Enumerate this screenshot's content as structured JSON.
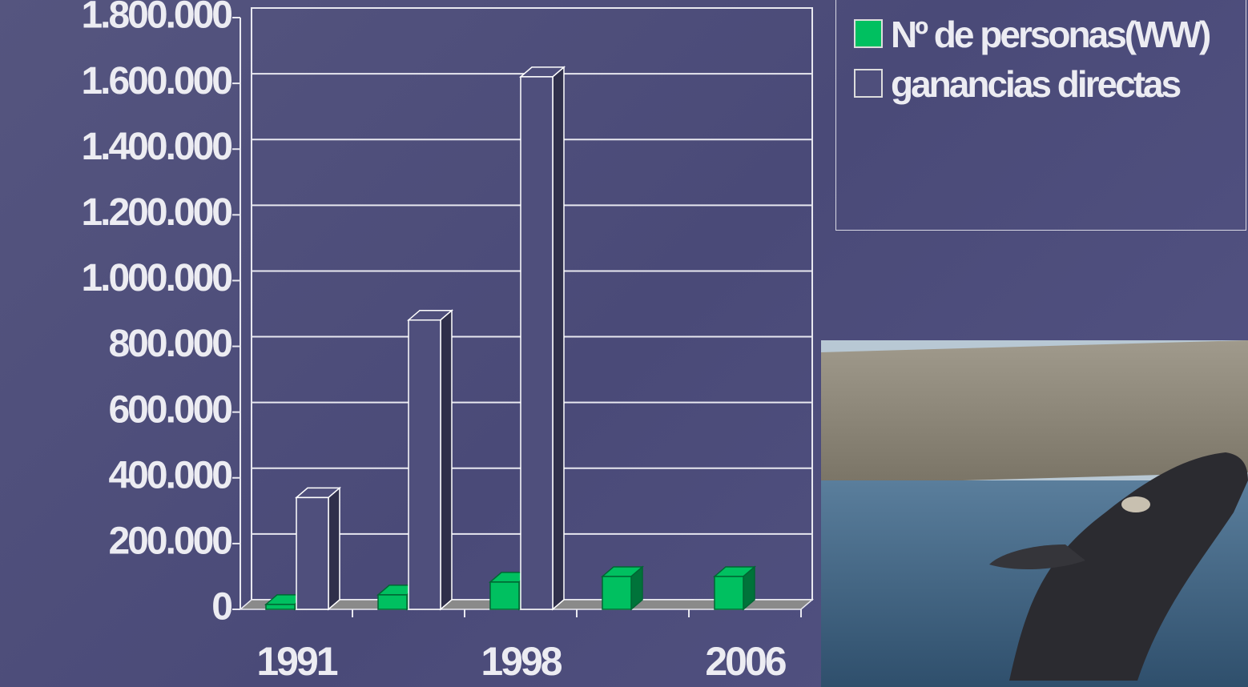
{
  "chart_data": {
    "type": "bar3d",
    "categories": [
      "1991",
      null,
      "1998",
      null,
      "2006"
    ],
    "series": [
      {
        "name": "Nº de personas(WW)",
        "color": "#00c060",
        "values": [
          15000,
          44000,
          83000,
          100000,
          100000
        ]
      },
      {
        "name": "ganancias directas",
        "color": "#4f4f7c",
        "values": [
          340000,
          880000,
          1620000,
          null,
          null
        ]
      }
    ],
    "ylim": [
      0,
      1800000
    ],
    "yticks": [
      {
        "value": 0,
        "label": "0"
      },
      {
        "value": 200000,
        "label": "200.000"
      },
      {
        "value": 400000,
        "label": "400.000"
      },
      {
        "value": 600000,
        "label": "600.000"
      },
      {
        "value": 800000,
        "label": "800.000"
      },
      {
        "value": 1000000,
        "label": "1.000.000"
      },
      {
        "value": 1200000,
        "label": "1.200.000"
      },
      {
        "value": 1400000,
        "label": "1.400.000"
      },
      {
        "value": 1600000,
        "label": "1.600.000"
      },
      {
        "value": 1800000,
        "label": "1.800.000"
      }
    ],
    "grid": true
  }
}
